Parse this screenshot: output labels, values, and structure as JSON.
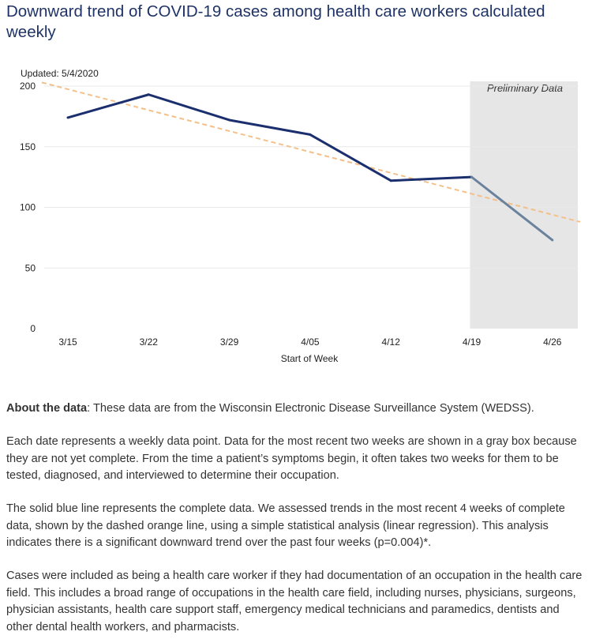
{
  "title": "Downward trend of COVID-19 cases among health care workers calculated weekly",
  "updated": "Updated: 5/4/2020",
  "chart_data": {
    "type": "line",
    "title": "Downward trend of COVID-19 cases among health care workers calculated weekly",
    "xlabel": "Start of Week",
    "ylabel": "",
    "categories": [
      "3/15",
      "3/22",
      "3/29",
      "4/05",
      "4/12",
      "4/19",
      "4/26"
    ],
    "ylim": [
      0,
      200
    ],
    "yticks": [
      0,
      50,
      100,
      150,
      200
    ],
    "grid": true,
    "series": [
      {
        "values": [
          174,
          193,
          172,
          160,
          122,
          125,
          73
        ],
        "color": "#1b2f6e",
        "preliminary_color": "#6a829c",
        "preliminary_from_index": 5
      }
    ],
    "trend_line": {
      "start": 203,
      "end": 88,
      "color": "#f4c08a",
      "style": "dashed"
    },
    "shaded_region": {
      "label": "Preliminary Data",
      "from_category": "4/19",
      "to_category": "4/26",
      "color": "#e6e6e6"
    }
  },
  "about": {
    "label": "About the data",
    "text": ": These data are from the Wisconsin Electronic Disease Surveillance System (WEDSS)."
  },
  "paragraphs": [
    "Each date represents a weekly data point. Data for the most recent two weeks are shown in a gray box because they are not yet complete. From the time a patient’s symptoms begin, it often takes two weeks for them to be tested, diagnosed, and interviewed to determine their occupation.",
    "The solid blue line represents the complete data. We assessed trends in the most recent 4 weeks of complete data, shown by the dashed orange line, using a simple statistical analysis (linear regression). This analysis indicates there is a significant downward trend over the past four weeks (p=0.004)*.",
    "Cases were included as being a health care worker if they had documentation of an occupation in the health care field. This includes a broad range of occupations in the health care field, including nurses, physicians, surgeons, physician assistants, health care support staff, emergency medical technicians and paramedics, dentists and other dental health workers, and pharmacists."
  ]
}
